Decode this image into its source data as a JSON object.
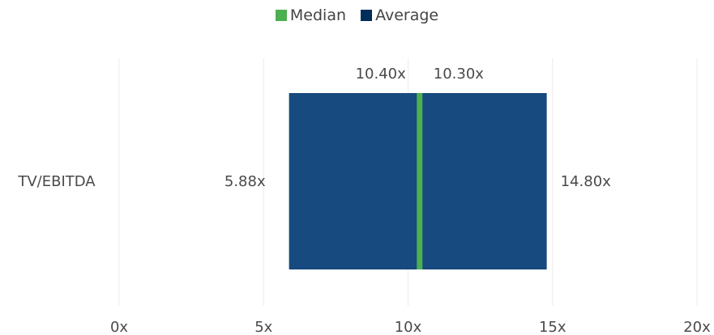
{
  "chart_data": {
    "type": "bar",
    "categories": [
      "TV/EBITDA"
    ],
    "range": {
      "low": 5.88,
      "high": 14.8
    },
    "series": [
      {
        "name": "Median",
        "values": [
          10.4
        ],
        "color": "#4caf50"
      },
      {
        "name": "Average",
        "values": [
          10.3
        ],
        "color": "#002d5c"
      }
    ],
    "bar_color": "#174a7e",
    "labels": {
      "low": "5.88x",
      "high": "14.80x",
      "median": "10.40x",
      "average": "10.30x"
    },
    "xticks": [
      {
        "value": 0,
        "label": "0x"
      },
      {
        "value": 5,
        "label": "5x"
      },
      {
        "value": 10,
        "label": "10x"
      },
      {
        "value": 15,
        "label": "15x"
      },
      {
        "value": 20,
        "label": "20x"
      }
    ],
    "xlim": [
      0,
      20
    ],
    "grid": true,
    "legend_position": "top-center"
  }
}
